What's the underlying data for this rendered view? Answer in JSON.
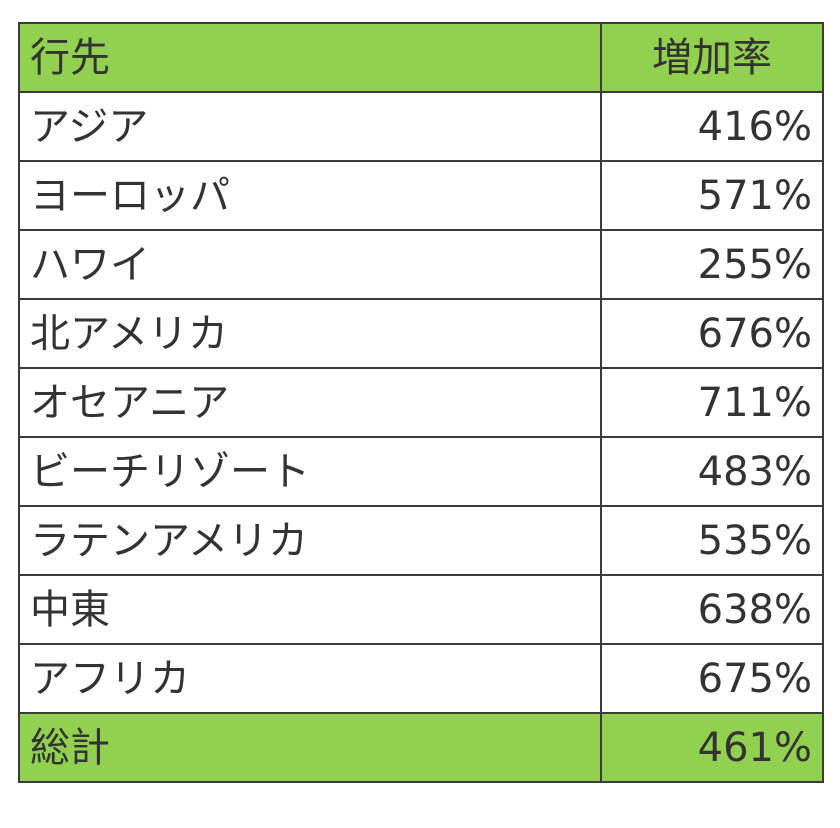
{
  "chart_data": {
    "type": "table",
    "columns": [
      "行先",
      "増加率"
    ],
    "rows": [
      {
        "label": "アジア",
        "value": "416%"
      },
      {
        "label": "ヨーロッパ",
        "value": "571%"
      },
      {
        "label": "ハワイ",
        "value": "255%"
      },
      {
        "label": "北アメリカ",
        "value": "676%"
      },
      {
        "label": "オセアニア",
        "value": "711%"
      },
      {
        "label": "ビーチリゾート",
        "value": "483%"
      },
      {
        "label": "ラテンアメリカ",
        "value": "535%"
      },
      {
        "label": "中東",
        "value": "638%"
      },
      {
        "label": "アフリカ",
        "value": "675%"
      }
    ],
    "total": {
      "label": "総計",
      "value": "461%"
    },
    "header_color": "#92d050",
    "border_color": "#3a3a3a"
  }
}
